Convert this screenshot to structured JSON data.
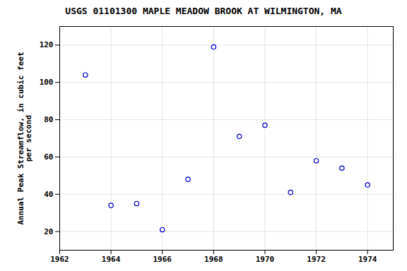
{
  "chart_data": {
    "type": "scatter",
    "title": "USGS 01101300 MAPLE MEADOW BROOK AT WILMINGTON, MA",
    "ylabel": "Annual Peak Streamflow, in cubic feet\nper second",
    "x": [
      1963,
      1964,
      1965,
      1966,
      1967,
      1968,
      1969,
      1970,
      1971,
      1972,
      1973,
      1974
    ],
    "values": [
      104,
      34,
      35,
      21,
      48,
      119,
      71,
      77,
      41,
      58,
      54,
      45
    ],
    "xlim": [
      1962,
      1975
    ],
    "ylim": [
      10,
      130
    ],
    "xticks": [
      1962,
      1964,
      1966,
      1968,
      1970,
      1972,
      1974
    ],
    "yticks": [
      20,
      40,
      60,
      80,
      100,
      120
    ],
    "color": "#0000cc",
    "marker": "circle",
    "grid": true
  }
}
